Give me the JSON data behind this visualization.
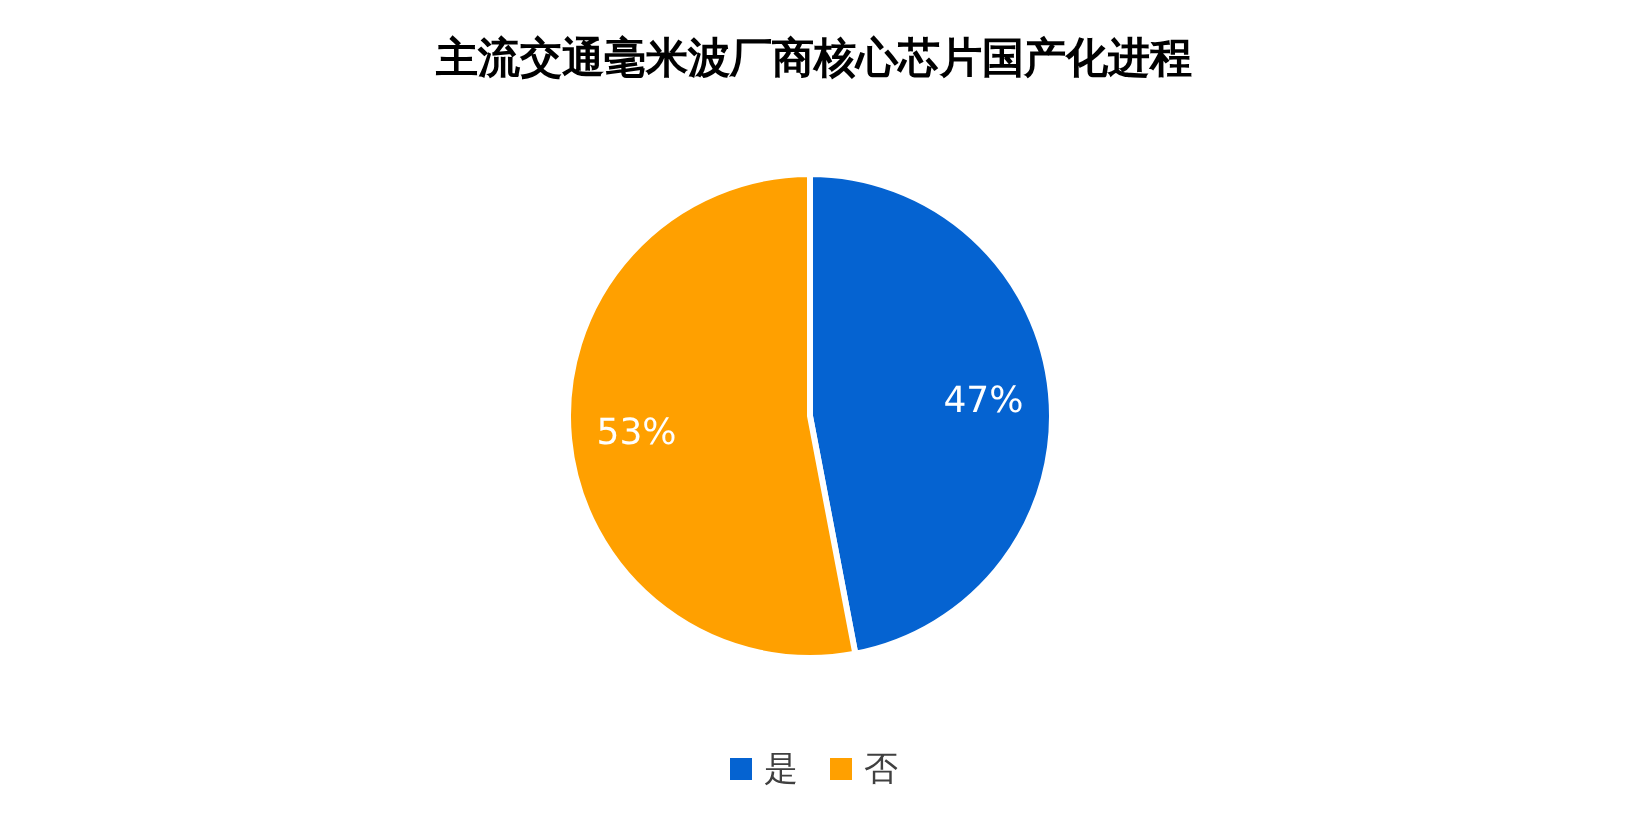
{
  "chart_data": {
    "type": "pie",
    "title": "主流交通毫米波厂商核心芯片国产化进程",
    "categories": [
      "是",
      "否"
    ],
    "values": [
      47,
      53
    ],
    "colors": [
      "#0563d1",
      "#ffa000"
    ],
    "value_labels": [
      "47%",
      "53%"
    ],
    "legend": "bottom"
  }
}
